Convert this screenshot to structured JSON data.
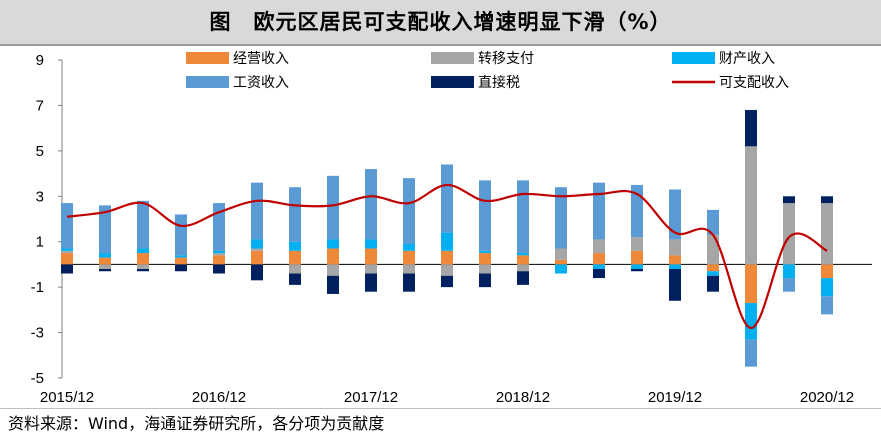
{
  "title": "图　欧元区居民可支配收入增速明显下滑（%）",
  "source": "资料来源：Wind，海通证券研究所，各分项为贡献度",
  "chart_data": {
    "type": "bar",
    "stacked": true,
    "title": "图　欧元区居民可支配收入增速明显下滑（%）",
    "xlabel": "",
    "ylabel": "",
    "ylim": [
      -5,
      9
    ],
    "yticks": [
      9,
      7,
      5,
      3,
      1,
      -1,
      -3,
      -5
    ],
    "xtick_labels": [
      {
        "label": "2015/12",
        "index": 0
      },
      {
        "label": "2016/12",
        "index": 4
      },
      {
        "label": "2017/12",
        "index": 8
      },
      {
        "label": "2018/12",
        "index": 12
      },
      {
        "label": "2019/12",
        "index": 16
      },
      {
        "label": "2020/12",
        "index": 20
      }
    ],
    "categories": [
      "2015/12",
      "2016/03",
      "2016/06",
      "2016/09",
      "2016/12",
      "2017/03",
      "2017/06",
      "2017/09",
      "2017/12",
      "2018/03",
      "2018/06",
      "2018/09",
      "2018/12",
      "2019/03",
      "2019/06",
      "2019/09",
      "2019/12",
      "2020/03",
      "2020/06",
      "2020/09",
      "2020/12"
    ],
    "grid": false,
    "legend_position": "top",
    "series": [
      {
        "name": "经营收入",
        "kind": "bar",
        "color": "#f0883a",
        "values": [
          0.5,
          0.3,
          0.5,
          0.3,
          0.4,
          0.6,
          0.6,
          0.7,
          0.7,
          0.6,
          0.6,
          0.5,
          0.4,
          0.2,
          0.5,
          0.6,
          0.4,
          -0.3,
          -1.7,
          0.0,
          -0.6
        ]
      },
      {
        "name": "转移支付",
        "kind": "bar",
        "color": "#a6a6a6",
        "values": [
          0.1,
          -0.2,
          -0.2,
          0.0,
          0.1,
          0.1,
          -0.4,
          -0.5,
          -0.4,
          -0.4,
          -0.5,
          -0.4,
          -0.3,
          0.5,
          0.6,
          0.6,
          0.7,
          1.3,
          5.2,
          2.7,
          2.7
        ]
      },
      {
        "name": "财产收入",
        "kind": "bar",
        "color": "#00b0f0",
        "values": [
          0.1,
          0.2,
          0.2,
          0.1,
          0.1,
          0.4,
          0.4,
          0.4,
          0.4,
          0.3,
          0.8,
          0.1,
          0.1,
          -0.4,
          -0.2,
          -0.2,
          -0.2,
          -0.2,
          -1.6,
          -0.6,
          -0.8
        ]
      },
      {
        "name": "工资收入",
        "kind": "bar",
        "color": "#5b9bd5",
        "values": [
          2.0,
          2.1,
          2.1,
          1.8,
          2.1,
          2.5,
          2.4,
          2.8,
          3.1,
          2.9,
          3.0,
          3.1,
          3.2,
          2.7,
          2.5,
          2.3,
          2.2,
          1.1,
          -1.2,
          -0.6,
          -0.8
        ]
      },
      {
        "name": "直接税",
        "kind": "bar",
        "color": "#002060",
        "values": [
          -0.4,
          -0.1,
          -0.1,
          -0.3,
          -0.4,
          -0.7,
          -0.5,
          -0.8,
          -0.8,
          -0.8,
          -0.5,
          -0.6,
          -0.6,
          0.0,
          -0.4,
          -0.1,
          -1.4,
          -0.7,
          1.6,
          0.3,
          0.3
        ]
      },
      {
        "name": "可支配收入",
        "kind": "line",
        "color": "#c00000",
        "values": [
          2.1,
          2.3,
          2.7,
          1.7,
          2.3,
          2.8,
          2.6,
          2.6,
          3.0,
          2.7,
          3.5,
          2.8,
          3.1,
          3.0,
          3.1,
          3.1,
          1.4,
          1.3,
          -2.8,
          1.2,
          0.6
        ]
      }
    ]
  }
}
